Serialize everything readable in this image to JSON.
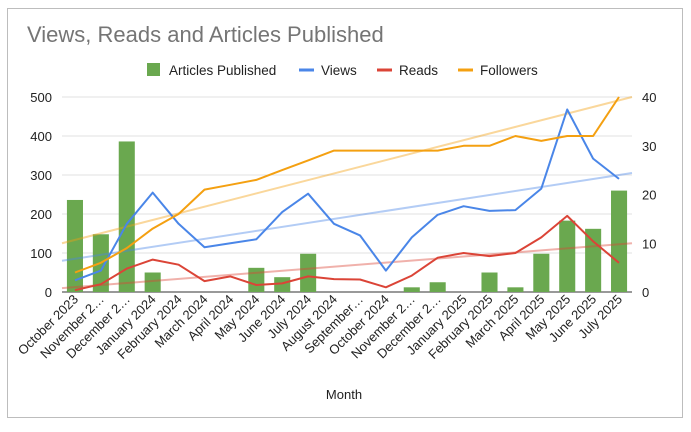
{
  "chart_data": {
    "type": "combo",
    "title": "Views, Reads and Articles Published",
    "xlabel": "Month",
    "ylabel_left": "",
    "ylabel_right": "",
    "ylim_left": [
      0,
      500
    ],
    "ylim_right": [
      0,
      40
    ],
    "yticks_left": [
      0,
      100,
      200,
      300,
      400,
      500
    ],
    "yticks_right": [
      0,
      10,
      20,
      30,
      40
    ],
    "gridlines": true,
    "legend_position": "top",
    "categories": [
      "October 2023",
      "November 2023",
      "December 2023",
      "January 2024",
      "February 2024",
      "March 2024",
      "April 2024",
      "May 2024",
      "June 2024",
      "July 2024",
      "August 2024",
      "September 2024",
      "October 2024",
      "November 2024",
      "December 2024",
      "January 2025",
      "February 2025",
      "March 2025",
      "April 2025",
      "May 2025",
      "June 2025",
      "July 2025"
    ],
    "category_labels": [
      "October 2023",
      "November 2…",
      "December 2…",
      "January 2024",
      "February 2024",
      "March 2024",
      "April 2024",
      "May 2024",
      "June 2024",
      "July 2024",
      "August 2024",
      "September…",
      "October 2024",
      "November 2…",
      "December 2…",
      "January 2025",
      "February 2025",
      "March 2025",
      "April 2025",
      "May 2025",
      "June 2025",
      "July 2025"
    ],
    "series": [
      {
        "name": "Articles Published",
        "type": "bar",
        "axis": "left",
        "color": "#6aa84f",
        "values": [
          236,
          148,
          386,
          50,
          0,
          0,
          0,
          62,
          38,
          98,
          0,
          0,
          0,
          12,
          25,
          0,
          50,
          12,
          98,
          183,
          162,
          260
        ]
      },
      {
        "name": "Views",
        "type": "line",
        "axis": "left",
        "color": "#4a86e8",
        "values": [
          30,
          55,
          175,
          255,
          175,
          115,
          125,
          135,
          205,
          252,
          175,
          145,
          55,
          140,
          198,
          220,
          208,
          210,
          265,
          468,
          342,
          290
        ],
        "trendline": [
          80,
          305
        ]
      },
      {
        "name": "Reads",
        "type": "line",
        "axis": "left",
        "color": "#db4437",
        "values": [
          5,
          20,
          60,
          83,
          70,
          28,
          40,
          18,
          22,
          40,
          33,
          32,
          12,
          42,
          88,
          100,
          92,
          100,
          140,
          195,
          130,
          75
        ],
        "trendline": [
          10,
          125
        ]
      },
      {
        "name": "Followers",
        "type": "line",
        "axis": "right",
        "color": "#f4a011",
        "values": [
          4,
          6,
          9,
          13,
          16,
          21,
          22,
          23,
          25,
          27,
          29,
          29,
          29,
          29,
          29,
          30,
          30,
          32,
          31,
          32,
          32,
          40
        ],
        "trendline": [
          10,
          40
        ]
      }
    ]
  },
  "legend": [
    {
      "label": "Articles Published",
      "color": "#6aa84f",
      "shape": "square"
    },
    {
      "label": "Views",
      "color": "#4a86e8",
      "shape": "line"
    },
    {
      "label": "Reads",
      "color": "#db4437",
      "shape": "line"
    },
    {
      "label": "Followers",
      "color": "#f4a011",
      "shape": "line"
    }
  ]
}
